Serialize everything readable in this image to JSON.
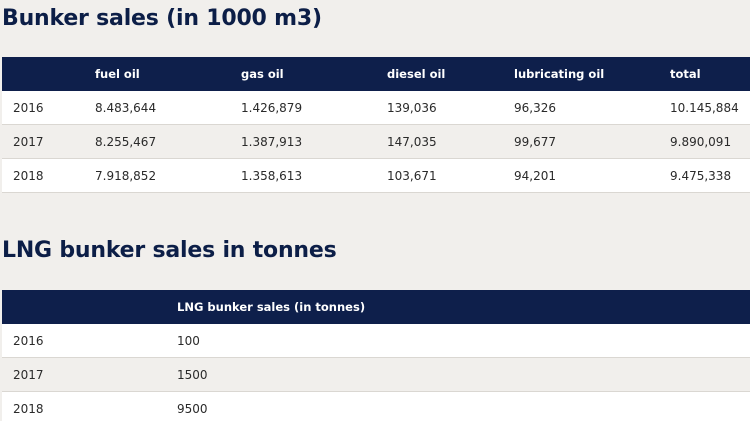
{
  "bunker": {
    "title": "Bunker sales (in 1000 m3)",
    "headers": [
      "",
      "fuel oil",
      "gas oil",
      "diesel oil",
      "lubricating oil",
      "total"
    ],
    "rows": [
      [
        "2016",
        "8.483,644",
        "1.426,879",
        "139,036",
        "96,326",
        "10.145,884"
      ],
      [
        "2017",
        "8.255,467",
        "1.387,913",
        "147,035",
        "99,677",
        "9.890,091"
      ],
      [
        "2018",
        "7.918,852",
        "1.358,613",
        "103,671",
        "94,201",
        "9.475,338"
      ]
    ]
  },
  "lng": {
    "title": "LNG bunker sales in tonnes",
    "headers": [
      "",
      "LNG bunker sales (in tonnes)"
    ],
    "rows": [
      [
        "2016",
        "100"
      ],
      [
        "2017",
        "1500"
      ],
      [
        "2018",
        "9500"
      ]
    ]
  }
}
